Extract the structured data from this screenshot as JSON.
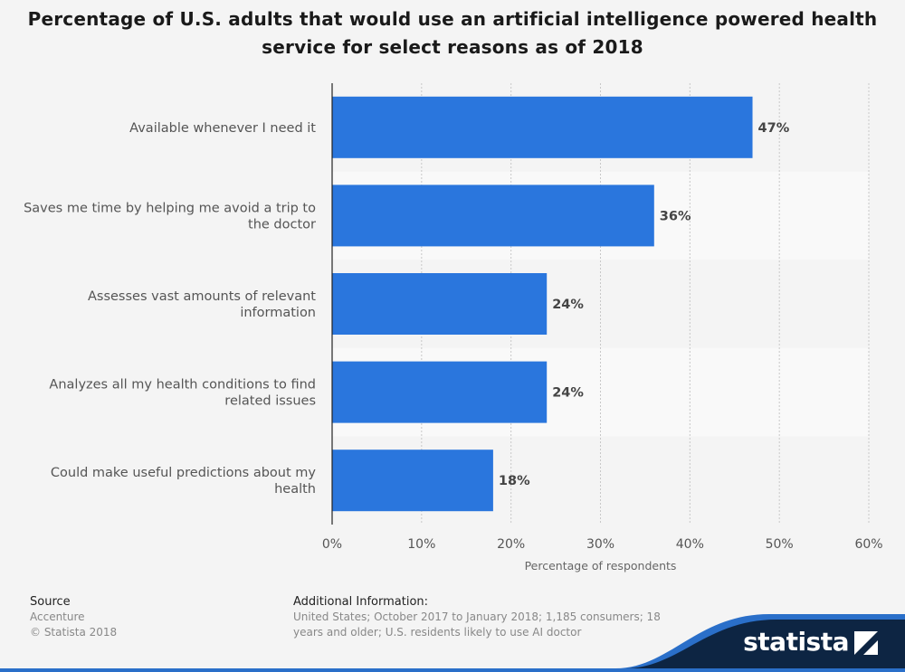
{
  "chart_data": {
    "type": "bar",
    "orientation": "horizontal",
    "title_line1": "Percentage of U.S. adults that would use an artificial intelligence powered health",
    "title_line2": "service for select reasons as of 2018",
    "xlabel": "Percentage of respondents",
    "xlim": [
      0,
      60
    ],
    "ticks": [
      "0%",
      "10%",
      "20%",
      "30%",
      "40%",
      "50%",
      "60%"
    ],
    "tick_values": [
      0,
      10,
      20,
      30,
      40,
      50,
      60
    ],
    "categories": [
      [
        "Available whenever I need it"
      ],
      [
        "Saves me time by helping me avoid a trip to",
        "the doctor"
      ],
      [
        "Assesses vast amounts of relevant",
        "information"
      ],
      [
        "Analyzes all my health conditions to find",
        "related issues"
      ],
      [
        "Could make useful predictions about my",
        "health"
      ]
    ],
    "values": [
      47,
      36,
      24,
      24,
      18
    ],
    "value_labels": [
      "47%",
      "36%",
      "24%",
      "24%",
      "18%"
    ],
    "grid": true,
    "colors": {
      "bar": "#2a76dd",
      "band_odd": "#f4f4f4",
      "band_even": "#f9f9f9",
      "text": "#555555"
    }
  },
  "footer": {
    "source_heading": "Source",
    "source_lines": [
      "Accenture",
      "© Statista 2018"
    ],
    "info_heading": "Additional Information:",
    "info_text": "United States; October 2017 to January 2018; 1,185 consumers; 18 years and older; U.S. residents likely to use AI doctor"
  },
  "branding": {
    "logo_text": "statista",
    "logo_icon": "statista-logo-icon",
    "bar_color": "#2a6fc9",
    "dark_color": "#0d2543"
  }
}
